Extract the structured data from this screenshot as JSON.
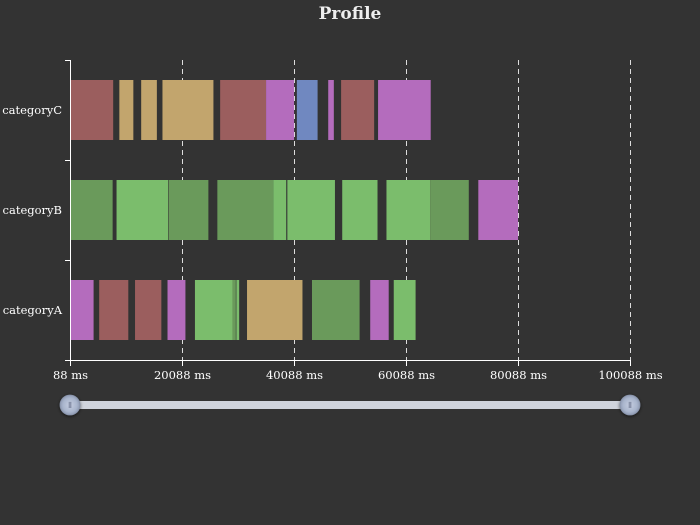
{
  "colors": {
    "background": "#333333",
    "axis": "#ffffff",
    "gridline": "#dddddd",
    "slider_track": "#d0d4dc",
    "slider_handle": "#a9b5cc",
    "red": "#9b5e5e",
    "gold": "#c2a56d",
    "purple": "#b46cbd",
    "blue": "#7088c0",
    "green_dark": "#6a9a5b",
    "green_light": "#7bbd6c"
  },
  "slider": {
    "left_handle_label": "⦀",
    "right_handle_label": "⦀",
    "range": [
      88,
      100088
    ]
  },
  "chart_data": {
    "type": "gantt",
    "title": "Profile",
    "x_unit": "ms",
    "xlim": [
      88,
      100088
    ],
    "x_ticks": [
      88,
      20088,
      40088,
      60088,
      80088,
      100088
    ],
    "x_tick_labels": [
      "88 ms",
      "20088 ms",
      "40088 ms",
      "60088 ms",
      "80088 ms",
      "100088 ms"
    ],
    "grid": "vertical dashed",
    "categories": [
      "categoryC",
      "categoryB",
      "categoryA"
    ],
    "series": [
      {
        "category": "categoryC",
        "segments": [
          {
            "start": 88,
            "end": 7800,
            "color": "red"
          },
          {
            "start": 8900,
            "end": 11400,
            "color": "gold"
          },
          {
            "start": 12800,
            "end": 15600,
            "color": "gold"
          },
          {
            "start": 16600,
            "end": 25700,
            "color": "gold"
          },
          {
            "start": 26900,
            "end": 35100,
            "color": "red"
          },
          {
            "start": 35100,
            "end": 40100,
            "color": "purple"
          },
          {
            "start": 40600,
            "end": 44300,
            "color": "blue"
          },
          {
            "start": 46200,
            "end": 47200,
            "color": "purple"
          },
          {
            "start": 48500,
            "end": 54400,
            "color": "red"
          },
          {
            "start": 55100,
            "end": 64500,
            "color": "purple"
          }
        ]
      },
      {
        "category": "categoryB",
        "segments": [
          {
            "start": 88,
            "end": 7700,
            "color": "green_dark"
          },
          {
            "start": 8400,
            "end": 17600,
            "color": "green_light"
          },
          {
            "start": 17700,
            "end": 24800,
            "color": "green_dark"
          },
          {
            "start": 26400,
            "end": 36400,
            "color": "green_dark"
          },
          {
            "start": 36400,
            "end": 38700,
            "color": "green_light"
          },
          {
            "start": 38900,
            "end": 47400,
            "color": "green_light"
          },
          {
            "start": 48700,
            "end": 55000,
            "color": "green_light"
          },
          {
            "start": 56600,
            "end": 64400,
            "color": "green_light"
          },
          {
            "start": 64400,
            "end": 71300,
            "color": "green_dark"
          },
          {
            "start": 73000,
            "end": 80100,
            "color": "purple"
          }
        ]
      },
      {
        "category": "categoryA",
        "segments": [
          {
            "start": 88,
            "end": 4300,
            "color": "purple"
          },
          {
            "start": 5300,
            "end": 10500,
            "color": "red"
          },
          {
            "start": 11700,
            "end": 16400,
            "color": "red"
          },
          {
            "start": 17500,
            "end": 20700,
            "color": "purple"
          },
          {
            "start": 22400,
            "end": 29100,
            "color": "green_light"
          },
          {
            "start": 29100,
            "end": 29700,
            "color": "green_dark"
          },
          {
            "start": 29800,
            "end": 30300,
            "color": "green_light"
          },
          {
            "start": 31700,
            "end": 41600,
            "color": "gold"
          },
          {
            "start": 43300,
            "end": 51800,
            "color": "green_dark"
          },
          {
            "start": 53700,
            "end": 57000,
            "color": "purple"
          },
          {
            "start": 57900,
            "end": 61800,
            "color": "green_light"
          }
        ]
      }
    ]
  }
}
